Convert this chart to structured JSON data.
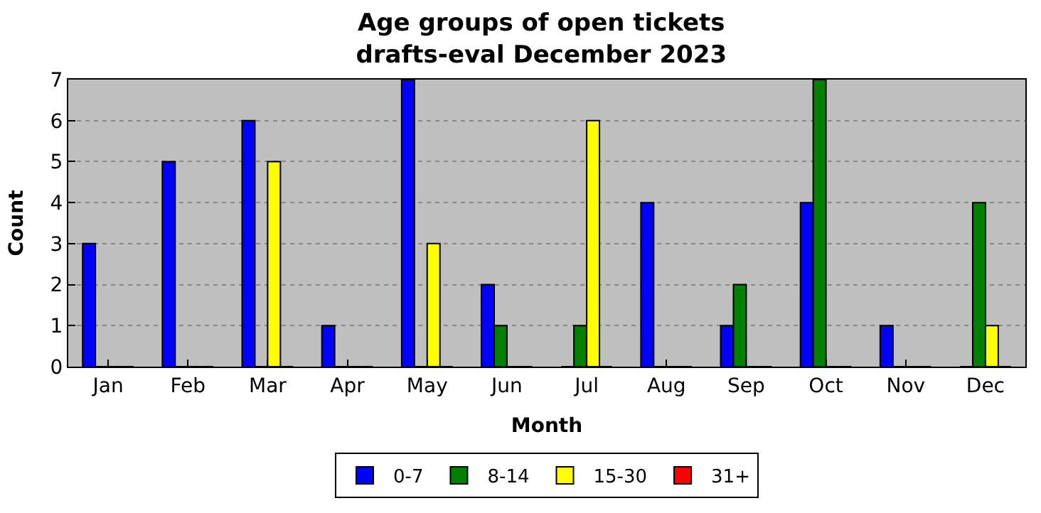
{
  "chart_data": {
    "type": "bar",
    "title": "Age groups of open tickets\ndrafts-eval December 2023",
    "xlabel": "Month",
    "ylabel": "Count",
    "categories": [
      "Jan",
      "Feb",
      "Mar",
      "Apr",
      "May",
      "Jun",
      "Jul",
      "Aug",
      "Sep",
      "Oct",
      "Nov",
      "Dec"
    ],
    "series": [
      {
        "name": "0-7",
        "color": "#0000ff",
        "values": [
          3,
          5,
          6,
          1,
          7,
          2,
          0,
          4,
          1,
          4,
          1,
          0
        ]
      },
      {
        "name": "8-14",
        "color": "#008000",
        "values": [
          0,
          0,
          0,
          0,
          0,
          1,
          1,
          0,
          2,
          7,
          0,
          4
        ]
      },
      {
        "name": "15-30",
        "color": "#ffff00",
        "values": [
          0,
          0,
          5,
          0,
          3,
          0,
          6,
          0,
          0,
          0,
          0,
          1
        ]
      },
      {
        "name": "31+",
        "color": "#ff0000",
        "values": [
          0,
          0,
          0,
          0,
          0,
          0,
          0,
          0,
          0,
          0,
          0,
          0
        ]
      }
    ],
    "ylim": [
      0,
      7
    ],
    "yticks": [
      0,
      1,
      2,
      3,
      4,
      5,
      6,
      7
    ],
    "grid": "y",
    "legend": "bottom"
  }
}
